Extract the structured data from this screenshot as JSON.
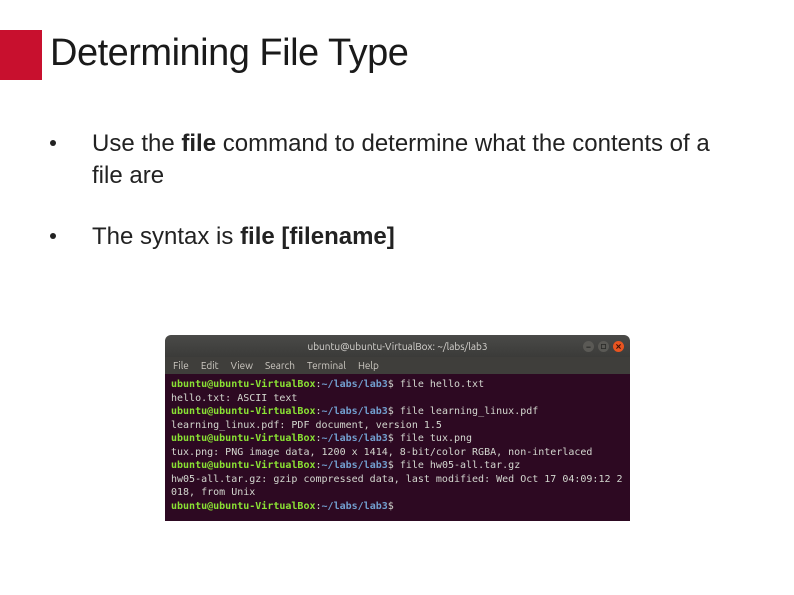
{
  "accent_color": "#c8102e",
  "title": "Determining File Type",
  "bullets": [
    {
      "pre": "Use the ",
      "bold": "file",
      "post": " command to determine what the contents of a file are"
    },
    {
      "pre": "The syntax is ",
      "bold": "file [filename]",
      "post": ""
    }
  ],
  "terminal": {
    "window_title": "ubuntu@ubuntu-VirtualBox: ~/labs/lab3",
    "menu": [
      "File",
      "Edit",
      "View",
      "Search",
      "Terminal",
      "Help"
    ],
    "prompt_user": "ubuntu@ubuntu-VirtualBox",
    "prompt_path": "~/labs/lab3",
    "lines": [
      {
        "type": "prompt",
        "cmd": "file hello.txt"
      },
      {
        "type": "out",
        "text": "hello.txt: ASCII text"
      },
      {
        "type": "prompt",
        "cmd": "file learning_linux.pdf"
      },
      {
        "type": "out",
        "text": "learning_linux.pdf: PDF document, version 1.5"
      },
      {
        "type": "prompt",
        "cmd": "file tux.png"
      },
      {
        "type": "out",
        "text": "tux.png: PNG image data, 1200 x 1414, 8-bit/color RGBA, non-interlaced"
      },
      {
        "type": "prompt",
        "cmd": "file hw05-all.tar.gz"
      },
      {
        "type": "out",
        "text": "hw05-all.tar.gz: gzip compressed data, last modified: Wed Oct 17 04:09:12 2018, from Unix"
      },
      {
        "type": "prompt",
        "cmd": ""
      }
    ],
    "colors": {
      "bg": "#2d0922",
      "user": "#8ae234",
      "path": "#729fcf",
      "text": "#d3d7cf",
      "titlebar": "#3f3e3b",
      "close_btn": "#e95420"
    }
  }
}
